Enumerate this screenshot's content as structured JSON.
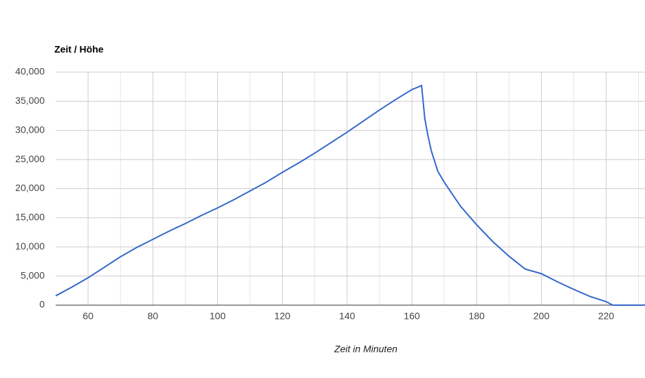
{
  "chart_data": {
    "type": "line",
    "title": "Zeit / Höhe",
    "x_label": "Zeit in Minuten",
    "series": [
      {
        "name": "Höhe",
        "color": "#3366cc",
        "x": [
          50,
          55,
          60,
          65,
          70,
          75,
          80,
          85,
          90,
          95,
          100,
          105,
          110,
          115,
          120,
          125,
          130,
          135,
          140,
          145,
          150,
          155,
          160,
          163,
          164,
          165,
          166,
          168,
          170,
          175,
          180,
          185,
          190,
          195,
          200,
          205,
          210,
          215,
          220,
          222,
          232
        ],
        "values": [
          1600,
          3100,
          4700,
          6500,
          8300,
          9900,
          11300,
          12700,
          14000,
          15400,
          16700,
          18100,
          19600,
          21100,
          22800,
          24400,
          26100,
          27900,
          29700,
          31600,
          33500,
          35300,
          37000,
          37700,
          32000,
          29000,
          26500,
          23000,
          21100,
          17000,
          13800,
          10900,
          8400,
          6200,
          5400,
          4000,
          2700,
          1500,
          600,
          0,
          0
        ]
      }
    ],
    "xlim": [
      50,
      232
    ],
    "xticks": [
      60,
      80,
      100,
      120,
      140,
      160,
      180,
      200,
      220
    ],
    "x_minor_grid": [
      70,
      90,
      110,
      130,
      150,
      170,
      190,
      210,
      230
    ],
    "ylim": [
      0,
      40000
    ],
    "yticks": [
      0,
      {
        "value": 5000,
        "label": "5,000"
      },
      {
        "value": 10000,
        "label": "10,000"
      },
      {
        "value": 15000,
        "label": "15,000"
      },
      {
        "value": 20000,
        "label": "20,000"
      },
      {
        "value": 25000,
        "label": "25,000"
      },
      {
        "value": 30000,
        "label": "30,000"
      },
      {
        "value": 35000,
        "label": "35,000"
      },
      {
        "value": 40000,
        "label": "40,000"
      }
    ],
    "grid": true
  }
}
